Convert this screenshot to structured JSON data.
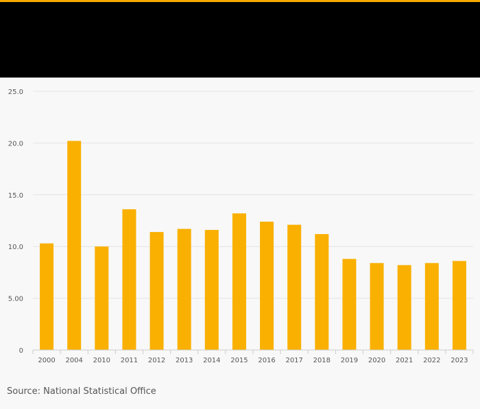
{
  "source_text": "Source: National Statistical Office",
  "colors": {
    "accent": "#f5a800",
    "bar": "#f9b000",
    "header": "#000000",
    "background": "#f8f8f8"
  },
  "chart_data": {
    "type": "bar",
    "categories": [
      "2000",
      "2004",
      "2010",
      "2011",
      "2012",
      "2013",
      "2014",
      "2015",
      "2016",
      "2017",
      "2018",
      "2019",
      "2020",
      "2021",
      "2022",
      "2023"
    ],
    "values": [
      10.3,
      20.2,
      10.0,
      13.6,
      11.4,
      11.7,
      11.6,
      13.2,
      12.4,
      12.1,
      11.2,
      8.8,
      8.4,
      8.2,
      8.4,
      8.6
    ],
    "ylim": [
      0,
      25
    ],
    "yticks": [
      0,
      5,
      10,
      15,
      20,
      25
    ],
    "ytick_labels": [
      "0",
      "5.00",
      "10.0",
      "15.0",
      "20.0",
      "25.0"
    ],
    "grid": true,
    "title": "",
    "xlabel": "",
    "ylabel": ""
  }
}
